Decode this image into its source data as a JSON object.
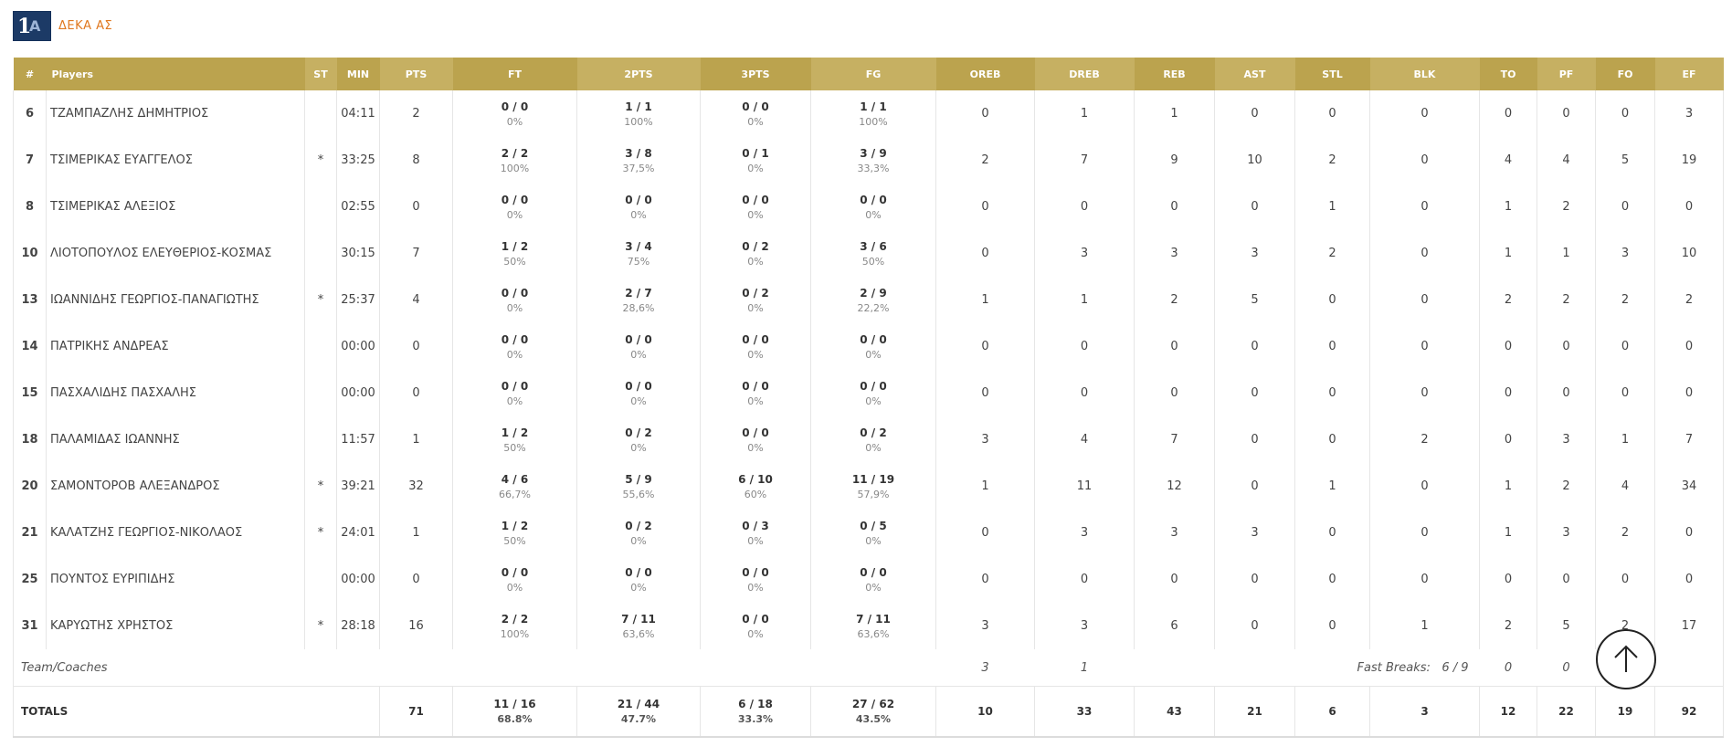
{
  "team": {
    "name": "ΔΕΚΑ ΑΣ",
    "logo_text": "1",
    "logo_text2": "Α"
  },
  "headers": [
    "#",
    "Players",
    "ST",
    "MIN",
    "PTS",
    "FT",
    "2PTS",
    "3PTS",
    "FG",
    "OREB",
    "DREB",
    "REB",
    "AST",
    "STL",
    "BLK",
    "TO",
    "PF",
    "FO",
    "EF"
  ],
  "players": [
    {
      "num": "6",
      "name": "ΤΖΑΜΠΑΖΛΗΣ ΔΗΜΗΤΡΙΟΣ",
      "st": "",
      "min": "04:11",
      "pts": "2",
      "ft": "0 / 0",
      "ft_p": "0%",
      "p2": "1 / 1",
      "p2_p": "100%",
      "p3": "0 / 0",
      "p3_p": "0%",
      "fg": "1 / 1",
      "fg_p": "100%",
      "oreb": "0",
      "dreb": "1",
      "reb": "1",
      "ast": "0",
      "stl": "0",
      "blk": "0",
      "to": "0",
      "pf": "0",
      "fo": "0",
      "ef": "3"
    },
    {
      "num": "7",
      "name": "ΤΣΙΜΕΡΙΚΑΣ ΕΥΑΓΓΕΛΟΣ",
      "st": "*",
      "min": "33:25",
      "pts": "8",
      "ft": "2 / 2",
      "ft_p": "100%",
      "p2": "3 / 8",
      "p2_p": "37,5%",
      "p3": "0 / 1",
      "p3_p": "0%",
      "fg": "3 / 9",
      "fg_p": "33,3%",
      "oreb": "2",
      "dreb": "7",
      "reb": "9",
      "ast": "10",
      "stl": "2",
      "blk": "0",
      "to": "4",
      "pf": "4",
      "fo": "5",
      "ef": "19"
    },
    {
      "num": "8",
      "name": "ΤΣΙΜΕΡΙΚΑΣ ΑΛΕΞΙΟΣ",
      "st": "",
      "min": "02:55",
      "pts": "0",
      "ft": "0 / 0",
      "ft_p": "0%",
      "p2": "0 / 0",
      "p2_p": "0%",
      "p3": "0 / 0",
      "p3_p": "0%",
      "fg": "0 / 0",
      "fg_p": "0%",
      "oreb": "0",
      "dreb": "0",
      "reb": "0",
      "ast": "0",
      "stl": "1",
      "blk": "0",
      "to": "1",
      "pf": "2",
      "fo": "0",
      "ef": "0"
    },
    {
      "num": "10",
      "name": "ΛΙΟΤΟΠΟΥΛΟΣ ΕΛΕΥΘΕΡΙΟΣ-ΚΟΣΜΑΣ",
      "st": "",
      "min": "30:15",
      "pts": "7",
      "ft": "1 / 2",
      "ft_p": "50%",
      "p2": "3 / 4",
      "p2_p": "75%",
      "p3": "0 / 2",
      "p3_p": "0%",
      "fg": "3 / 6",
      "fg_p": "50%",
      "oreb": "0",
      "dreb": "3",
      "reb": "3",
      "ast": "3",
      "stl": "2",
      "blk": "0",
      "to": "1",
      "pf": "1",
      "fo": "3",
      "ef": "10"
    },
    {
      "num": "13",
      "name": "ΙΩΑΝΝΙΔΗΣ ΓΕΩΡΓΙΟΣ-ΠΑΝΑΓΙΩΤΗΣ",
      "st": "*",
      "min": "25:37",
      "pts": "4",
      "ft": "0 / 0",
      "ft_p": "0%",
      "p2": "2 / 7",
      "p2_p": "28,6%",
      "p3": "0 / 2",
      "p3_p": "0%",
      "fg": "2 / 9",
      "fg_p": "22,2%",
      "oreb": "1",
      "dreb": "1",
      "reb": "2",
      "ast": "5",
      "stl": "0",
      "blk": "0",
      "to": "2",
      "pf": "2",
      "fo": "2",
      "ef": "2"
    },
    {
      "num": "14",
      "name": "ΠΑΤΡΙΚΗΣ ΑΝΔΡΕΑΣ",
      "st": "",
      "min": "00:00",
      "pts": "0",
      "ft": "0 / 0",
      "ft_p": "0%",
      "p2": "0 / 0",
      "p2_p": "0%",
      "p3": "0 / 0",
      "p3_p": "0%",
      "fg": "0 / 0",
      "fg_p": "0%",
      "oreb": "0",
      "dreb": "0",
      "reb": "0",
      "ast": "0",
      "stl": "0",
      "blk": "0",
      "to": "0",
      "pf": "0",
      "fo": "0",
      "ef": "0"
    },
    {
      "num": "15",
      "name": "ΠΑΣΧΑΛΙΔΗΣ ΠΑΣΧΑΛΗΣ",
      "st": "",
      "min": "00:00",
      "pts": "0",
      "ft": "0 / 0",
      "ft_p": "0%",
      "p2": "0 / 0",
      "p2_p": "0%",
      "p3": "0 / 0",
      "p3_p": "0%",
      "fg": "0 / 0",
      "fg_p": "0%",
      "oreb": "0",
      "dreb": "0",
      "reb": "0",
      "ast": "0",
      "stl": "0",
      "blk": "0",
      "to": "0",
      "pf": "0",
      "fo": "0",
      "ef": "0"
    },
    {
      "num": "18",
      "name": "ΠΑΛΑΜΙΔΑΣ ΙΩΑΝΝΗΣ",
      "st": "",
      "min": "11:57",
      "pts": "1",
      "ft": "1 / 2",
      "ft_p": "50%",
      "p2": "0 / 2",
      "p2_p": "0%",
      "p3": "0 / 0",
      "p3_p": "0%",
      "fg": "0 / 2",
      "fg_p": "0%",
      "oreb": "3",
      "dreb": "4",
      "reb": "7",
      "ast": "0",
      "stl": "0",
      "blk": "2",
      "to": "0",
      "pf": "3",
      "fo": "1",
      "ef": "7"
    },
    {
      "num": "20",
      "name": "ΣΑΜΟΝΤΟΡΟΒ ΑΛΕΞΑΝΔΡΟΣ",
      "st": "*",
      "min": "39:21",
      "pts": "32",
      "ft": "4 / 6",
      "ft_p": "66,7%",
      "p2": "5 / 9",
      "p2_p": "55,6%",
      "p3": "6 / 10",
      "p3_p": "60%",
      "fg": "11 / 19",
      "fg_p": "57,9%",
      "oreb": "1",
      "dreb": "11",
      "reb": "12",
      "ast": "0",
      "stl": "1",
      "blk": "0",
      "to": "1",
      "pf": "2",
      "fo": "4",
      "ef": "34"
    },
    {
      "num": "21",
      "name": "ΚΑΛΑΤΖΗΣ ΓΕΩΡΓΙΟΣ-ΝΙΚΟΛΑΟΣ",
      "st": "*",
      "min": "24:01",
      "pts": "1",
      "ft": "1 / 2",
      "ft_p": "50%",
      "p2": "0 / 2",
      "p2_p": "0%",
      "p3": "0 / 3",
      "p3_p": "0%",
      "fg": "0 / 5",
      "fg_p": "0%",
      "oreb": "0",
      "dreb": "3",
      "reb": "3",
      "ast": "3",
      "stl": "0",
      "blk": "0",
      "to": "1",
      "pf": "3",
      "fo": "2",
      "ef": "0"
    },
    {
      "num": "25",
      "name": "ΠΟΥΝΤΟΣ ΕΥΡΙΠΙΔΗΣ",
      "st": "",
      "min": "00:00",
      "pts": "0",
      "ft": "0 / 0",
      "ft_p": "0%",
      "p2": "0 / 0",
      "p2_p": "0%",
      "p3": "0 / 0",
      "p3_p": "0%",
      "fg": "0 / 0",
      "fg_p": "0%",
      "oreb": "0",
      "dreb": "0",
      "reb": "0",
      "ast": "0",
      "stl": "0",
      "blk": "0",
      "to": "0",
      "pf": "0",
      "fo": "0",
      "ef": "0"
    },
    {
      "num": "31",
      "name": "ΚΑΡΥΩΤΗΣ ΧΡΗΣΤΟΣ",
      "st": "*",
      "min": "28:18",
      "pts": "16",
      "ft": "2 / 2",
      "ft_p": "100%",
      "p2": "7 / 11",
      "p2_p": "63,6%",
      "p3": "0 / 0",
      "p3_p": "0%",
      "fg": "7 / 11",
      "fg_p": "63,6%",
      "oreb": "3",
      "dreb": "3",
      "reb": "6",
      "ast": "0",
      "stl": "0",
      "blk": "1",
      "to": "2",
      "pf": "5",
      "fo": "2",
      "ef": "17"
    }
  ],
  "team_row": {
    "label": "Team/Coaches",
    "oreb": "3",
    "dreb": "1",
    "fast_breaks_label": "Fast Breaks:",
    "fast_breaks_value": "6 / 9",
    "to": "0",
    "pf": "0"
  },
  "totals": {
    "label": "TOTALS",
    "pts": "71",
    "ft": "11 / 16",
    "ft_p": "68.8%",
    "p2": "21 / 44",
    "p2_p": "47.7%",
    "p3": "6 / 18",
    "p3_p": "33.3%",
    "fg": "27 / 62",
    "fg_p": "43.5%",
    "oreb": "10",
    "dreb": "33",
    "reb": "43",
    "ast": "21",
    "stl": "6",
    "blk": "3",
    "to": "12",
    "pf": "22",
    "fo": "19",
    "ef": "92"
  },
  "scroll_top_icon": "arrow-up-icon"
}
